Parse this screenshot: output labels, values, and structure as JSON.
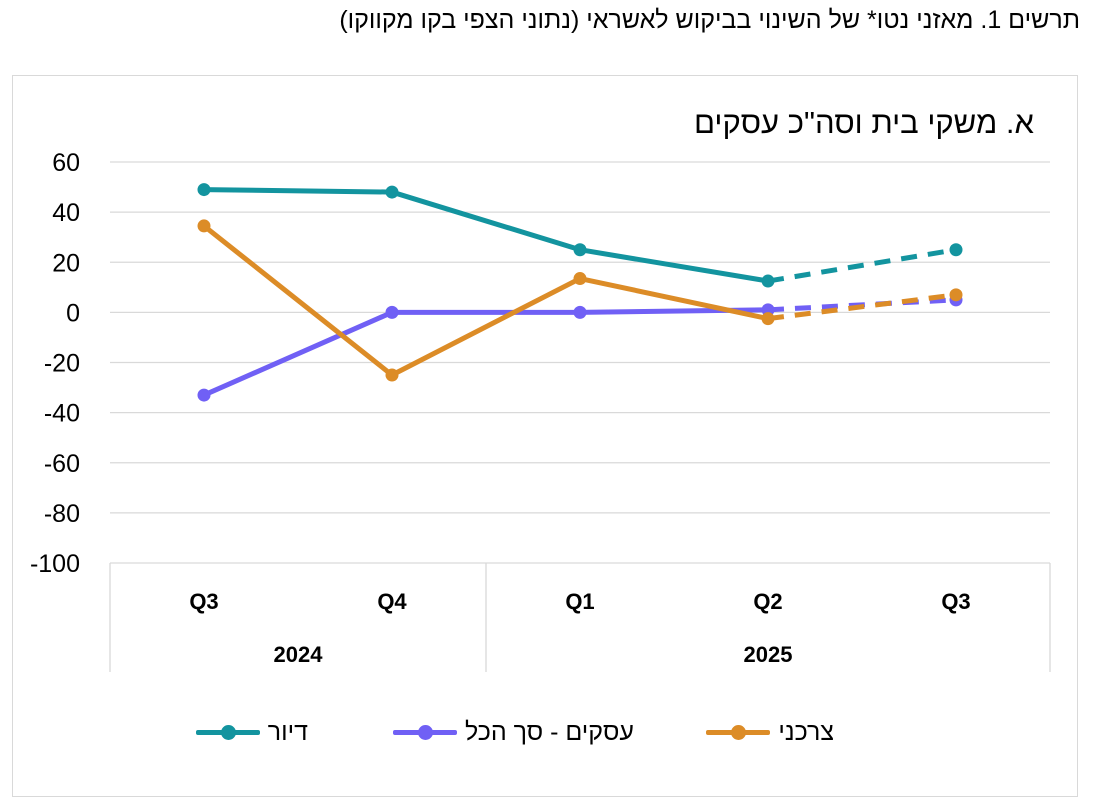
{
  "figure_title": "תרשים 1. מאזני נטו* של השינוי בביקוש לאשראי (נתוני הצפי בקו מקווקו)",
  "panel_title": "א. משקי בית וסה\"כ עסקים",
  "chart_data": {
    "type": "line",
    "categories": [
      "Q3",
      "Q4",
      "Q1",
      "Q2",
      "Q3"
    ],
    "year_groups": [
      {
        "label": "2024",
        "span": 2
      },
      {
        "label": "2025",
        "span": 3
      }
    ],
    "ylim": [
      -100,
      60
    ],
    "yticks": [
      60,
      40,
      20,
      0,
      -20,
      -40,
      -60,
      -80,
      -100
    ],
    "grid": true,
    "legend_position": "bottom",
    "forecast_from_index": 3,
    "series": [
      {
        "name": "דיור",
        "color": "#13949f",
        "values": [
          49,
          48,
          25,
          12.5,
          25
        ]
      },
      {
        "name": "עסקים - סך הכל",
        "color": "#7060f5",
        "values": [
          -33,
          0,
          0,
          1,
          5
        ]
      },
      {
        "name": "צרכני",
        "color": "#dc8c27",
        "values": [
          34.5,
          -25,
          13.5,
          -2.5,
          7
        ]
      }
    ]
  }
}
